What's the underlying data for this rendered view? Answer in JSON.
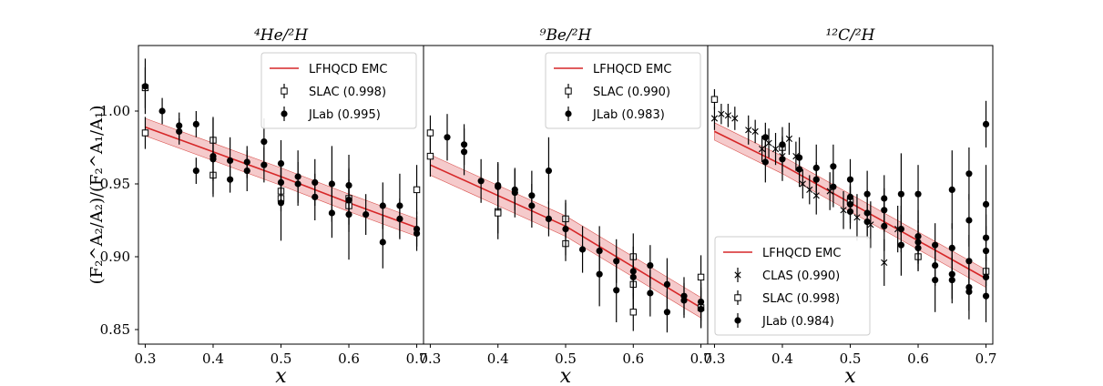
{
  "chart_data": {
    "type": "scatter",
    "ylabel": "(F₂^A₂/A₂)/(F₂^A₁/A₁)",
    "xlabel": "x",
    "xlim": [
      0.29,
      0.71
    ],
    "ylim": [
      0.84,
      1.045
    ],
    "xticks": [
      "0.3",
      "0.4",
      "0.5",
      "0.6",
      "0.7"
    ],
    "yticks": [
      "0.85",
      "0.90",
      "0.95",
      "1.00"
    ],
    "panels": [
      {
        "title": "⁴He/²H",
        "legend": [
          "LFHQCD EMC",
          "SLAC (0.998)",
          "JLab (0.995)"
        ],
        "curve": {
          "x": [
            0.3,
            0.4,
            0.5,
            0.6,
            0.7
          ],
          "y": [
            0.989,
            0.972,
            0.955,
            0.937,
            0.92
          ],
          "band": 0.006
        },
        "series": [
          {
            "name": "SLAC (0.998)",
            "marker": "square",
            "points": [
              [
                0.3,
                1.016,
                0.014
              ],
              [
                0.3,
                0.985,
                0.011
              ],
              [
                0.4,
                0.98,
                0.016
              ],
              [
                0.4,
                0.956,
                0.015
              ],
              [
                0.5,
                0.945,
                0.009
              ],
              [
                0.5,
                0.94,
                0.009
              ],
              [
                0.6,
                0.935,
                0.013
              ],
              [
                0.6,
                0.94,
                0.013
              ],
              [
                0.7,
                0.946,
                0.017
              ]
            ]
          },
          {
            "name": "JLab (0.995)",
            "marker": "circle",
            "points": [
              [
                0.3,
                1.017,
                0.019
              ],
              [
                0.325,
                1.0,
                0.009
              ],
              [
                0.35,
                0.99,
                0.009
              ],
              [
                0.35,
                0.986,
                0.009
              ],
              [
                0.375,
                0.991,
                0.009
              ],
              [
                0.375,
                0.959,
                0.009
              ],
              [
                0.4,
                0.969,
                0.026
              ],
              [
                0.4,
                0.967,
                0.015
              ],
              [
                0.425,
                0.966,
                0.016
              ],
              [
                0.425,
                0.953,
                0.009
              ],
              [
                0.45,
                0.965,
                0.011
              ],
              [
                0.45,
                0.959,
                0.014
              ],
              [
                0.475,
                0.979,
                0.016
              ],
              [
                0.475,
                0.963,
                0.012
              ],
              [
                0.5,
                0.964,
                0.016
              ],
              [
                0.5,
                0.951,
                0.014
              ],
              [
                0.5,
                0.937,
                0.026
              ],
              [
                0.525,
                0.955,
                0.018
              ],
              [
                0.525,
                0.95,
                0.015
              ],
              [
                0.55,
                0.951,
                0.016
              ],
              [
                0.55,
                0.941,
                0.016
              ],
              [
                0.575,
                0.95,
                0.026
              ],
              [
                0.575,
                0.93,
                0.017
              ],
              [
                0.6,
                0.949,
                0.021
              ],
              [
                0.6,
                0.939,
                0.022
              ],
              [
                0.6,
                0.929,
                0.031
              ],
              [
                0.625,
                0.929,
                0.014
              ],
              [
                0.65,
                0.935,
                0.016
              ],
              [
                0.65,
                0.91,
                0.018
              ],
              [
                0.675,
                0.935,
                0.022
              ],
              [
                0.675,
                0.926,
                0.014
              ],
              [
                0.7,
                0.919,
                0.012
              ],
              [
                0.7,
                0.916,
                0.012
              ]
            ]
          }
        ]
      },
      {
        "title": "⁹Be/²H",
        "legend": [
          "LFHQCD EMC",
          "SLAC (0.990)",
          "JLab (0.983)"
        ],
        "curve": {
          "x": [
            0.3,
            0.4,
            0.5,
            0.6,
            0.7
          ],
          "y": [
            0.963,
            0.942,
            0.921,
            0.893,
            0.865
          ],
          "band": 0.007
        },
        "series": [
          {
            "name": "SLAC (0.990)",
            "marker": "square",
            "points": [
              [
                0.3,
                0.985,
                0.012
              ],
              [
                0.3,
                0.969,
                0.014
              ],
              [
                0.4,
                0.931,
                0.019
              ],
              [
                0.4,
                0.93,
                0.014
              ],
              [
                0.5,
                0.926,
                0.013
              ],
              [
                0.5,
                0.909,
                0.012
              ],
              [
                0.6,
                0.9,
                0.016
              ],
              [
                0.6,
                0.881,
                0.02
              ],
              [
                0.6,
                0.862,
                0.013
              ],
              [
                0.7,
                0.886,
                0.015
              ],
              [
                0.7,
                0.865,
                0.014
              ]
            ]
          },
          {
            "name": "JLab (0.983)",
            "marker": "circle",
            "points": [
              [
                0.325,
                0.982,
                0.016
              ],
              [
                0.35,
                0.977,
                0.014
              ],
              [
                0.35,
                0.972,
                0.016
              ],
              [
                0.375,
                0.952,
                0.015
              ],
              [
                0.4,
                0.949,
                0.016
              ],
              [
                0.4,
                0.948,
                0.016
              ],
              [
                0.425,
                0.946,
                0.014
              ],
              [
                0.425,
                0.944,
                0.017
              ],
              [
                0.45,
                0.942,
                0.017
              ],
              [
                0.45,
                0.935,
                0.015
              ],
              [
                0.475,
                0.959,
                0.023
              ],
              [
                0.475,
                0.926,
                0.012
              ],
              [
                0.5,
                0.919,
                0.018
              ],
              [
                0.525,
                0.905,
                0.016
              ],
              [
                0.55,
                0.904,
                0.017
              ],
              [
                0.55,
                0.888,
                0.022
              ],
              [
                0.575,
                0.897,
                0.015
              ],
              [
                0.575,
                0.877,
                0.022
              ],
              [
                0.6,
                0.89,
                0.017
              ],
              [
                0.6,
                0.886,
                0.015
              ],
              [
                0.625,
                0.894,
                0.014
              ],
              [
                0.625,
                0.875,
                0.016
              ],
              [
                0.65,
                0.881,
                0.018
              ],
              [
                0.65,
                0.862,
                0.014
              ],
              [
                0.675,
                0.873,
                0.013
              ],
              [
                0.675,
                0.87,
                0.012
              ],
              [
                0.7,
                0.869,
                0.013
              ],
              [
                0.7,
                0.864,
                0.013
              ]
            ]
          }
        ]
      },
      {
        "title": "¹²C/²H",
        "legend": [
          "LFHQCD EMC",
          "CLAS (0.990)",
          "SLAC (0.998)",
          "JLab (0.984)"
        ],
        "curve": {
          "x": [
            0.3,
            0.4,
            0.5,
            0.6,
            0.7
          ],
          "y": [
            0.986,
            0.963,
            0.937,
            0.911,
            0.885
          ],
          "band": 0.006
        },
        "series": [
          {
            "name": "CLAS (0.990)",
            "marker": "x",
            "points": [
              [
                0.3,
                0.995,
                0.008
              ],
              [
                0.31,
                0.998,
                0.007
              ],
              [
                0.32,
                0.997,
                0.008
              ],
              [
                0.33,
                0.995,
                0.008
              ],
              [
                0.35,
                0.987,
                0.01
              ],
              [
                0.36,
                0.986,
                0.008
              ],
              [
                0.37,
                0.974,
                0.009
              ],
              [
                0.38,
                0.978,
                0.01
              ],
              [
                0.39,
                0.974,
                0.011
              ],
              [
                0.4,
                0.969,
                0.011
              ],
              [
                0.41,
                0.981,
                0.011
              ],
              [
                0.42,
                0.969,
                0.01
              ],
              [
                0.43,
                0.95,
                0.01
              ],
              [
                0.44,
                0.946,
                0.01
              ],
              [
                0.45,
                0.942,
                0.013
              ],
              [
                0.47,
                0.945,
                0.013
              ],
              [
                0.49,
                0.932,
                0.013
              ],
              [
                0.51,
                0.927,
                0.016
              ],
              [
                0.53,
                0.922,
                0.016
              ],
              [
                0.55,
                0.896,
                0.016
              ],
              [
                0.57,
                0.919,
                0.016
              ]
            ]
          },
          {
            "name": "SLAC (0.998)",
            "marker": "square",
            "points": [
              [
                0.3,
                1.008,
                0.007
              ],
              [
                0.4,
                0.975,
                0.008
              ],
              [
                0.5,
                0.938,
                0.01
              ],
              [
                0.6,
                0.9,
                0.009
              ],
              [
                0.7,
                0.89,
                0.01
              ]
            ]
          },
          {
            "name": "JLab (0.984)",
            "marker": "circle",
            "points": [
              [
                0.375,
                0.982,
                0.01
              ],
              [
                0.375,
                0.965,
                0.014
              ],
              [
                0.4,
                0.967,
                0.015
              ],
              [
                0.4,
                0.977,
                0.012
              ],
              [
                0.425,
                0.968,
                0.014
              ],
              [
                0.425,
                0.96,
                0.012
              ],
              [
                0.45,
                0.961,
                0.016
              ],
              [
                0.45,
                0.953,
                0.012
              ],
              [
                0.475,
                0.962,
                0.015
              ],
              [
                0.475,
                0.948,
                0.014
              ],
              [
                0.5,
                0.953,
                0.014
              ],
              [
                0.5,
                0.941,
                0.012
              ],
              [
                0.5,
                0.936,
                0.013
              ],
              [
                0.5,
                0.931,
                0.012
              ],
              [
                0.525,
                0.943,
                0.016
              ],
              [
                0.525,
                0.93,
                0.016
              ],
              [
                0.525,
                0.924,
                0.012
              ],
              [
                0.55,
                0.94,
                0.016
              ],
              [
                0.55,
                0.932,
                0.015
              ],
              [
                0.55,
                0.921,
                0.017
              ],
              [
                0.575,
                0.943,
                0.028
              ],
              [
                0.575,
                0.919,
                0.016
              ],
              [
                0.575,
                0.908,
                0.021
              ],
              [
                0.6,
                0.943,
                0.02
              ],
              [
                0.6,
                0.914,
                0.018
              ],
              [
                0.6,
                0.91,
                0.015
              ],
              [
                0.6,
                0.906,
                0.016
              ],
              [
                0.625,
                0.908,
                0.015
              ],
              [
                0.625,
                0.894,
                0.014
              ],
              [
                0.625,
                0.884,
                0.022
              ],
              [
                0.65,
                0.946,
                0.027
              ],
              [
                0.65,
                0.906,
                0.017
              ],
              [
                0.65,
                0.888,
                0.017
              ],
              [
                0.65,
                0.884,
                0.016
              ],
              [
                0.675,
                0.957,
                0.018
              ],
              [
                0.675,
                0.925,
                0.018
              ],
              [
                0.675,
                0.897,
                0.018
              ],
              [
                0.675,
                0.879,
                0.016
              ],
              [
                0.675,
                0.876,
                0.019
              ],
              [
                0.7,
                0.991,
                0.016
              ],
              [
                0.7,
                0.936,
                0.027
              ],
              [
                0.7,
                0.913,
                0.016
              ],
              [
                0.7,
                0.904,
                0.017
              ],
              [
                0.7,
                0.886,
                0.016
              ],
              [
                0.7,
                0.873,
                0.018
              ]
            ]
          }
        ]
      }
    ]
  }
}
